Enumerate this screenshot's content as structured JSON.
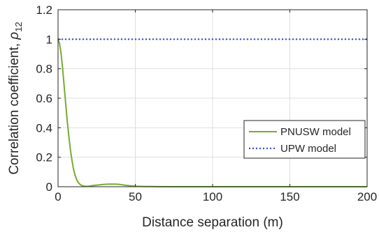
{
  "chart_data": {
    "type": "line",
    "title": "",
    "xlabel": "Distance separation (m)",
    "ylabel_text": "Correlation coefficient, ",
    "ylabel_symbol": "ρ",
    "ylabel_subscript": "12",
    "xlim": [
      0,
      200
    ],
    "ylim": [
      0,
      1.2
    ],
    "x_ticks": [
      0,
      50,
      100,
      150,
      200
    ],
    "x_tick_labels": [
      "0",
      "50",
      "100",
      "150",
      "200"
    ],
    "y_ticks": [
      0,
      0.2,
      0.4,
      0.6,
      0.8,
      1,
      1.2
    ],
    "y_tick_labels": [
      "0",
      "0.2",
      "0.4",
      "0.6",
      "0.8",
      "1",
      "1.2"
    ],
    "grid": true,
    "legend_position": "lower-right",
    "series": [
      {
        "name": "PNUSW model",
        "color": "#77ac30",
        "style": "solid",
        "x": [
          0,
          1,
          2,
          3,
          4,
          5,
          6,
          7,
          8,
          9,
          10,
          11,
          12,
          13,
          14,
          15,
          16,
          17,
          18,
          20,
          22,
          25,
          28,
          30,
          32,
          35,
          38,
          40,
          43,
          46,
          50,
          55,
          60,
          70,
          80,
          100,
          120,
          150,
          200
        ],
        "y": [
          1.0,
          0.97,
          0.9,
          0.8,
          0.68,
          0.56,
          0.44,
          0.34,
          0.25,
          0.18,
          0.12,
          0.08,
          0.05,
          0.03,
          0.018,
          0.01,
          0.006,
          0.004,
          0.003,
          0.004,
          0.007,
          0.011,
          0.014,
          0.016,
          0.017,
          0.018,
          0.017,
          0.015,
          0.011,
          0.007,
          0.004,
          0.002,
          0.001,
          0.0,
          0.0,
          0.0,
          0.0,
          0.0,
          0.0
        ]
      },
      {
        "name": "UPW model",
        "color": "#3a4cc0",
        "style": "dotted",
        "x": [
          0,
          200
        ],
        "y": [
          1,
          1
        ]
      }
    ]
  }
}
